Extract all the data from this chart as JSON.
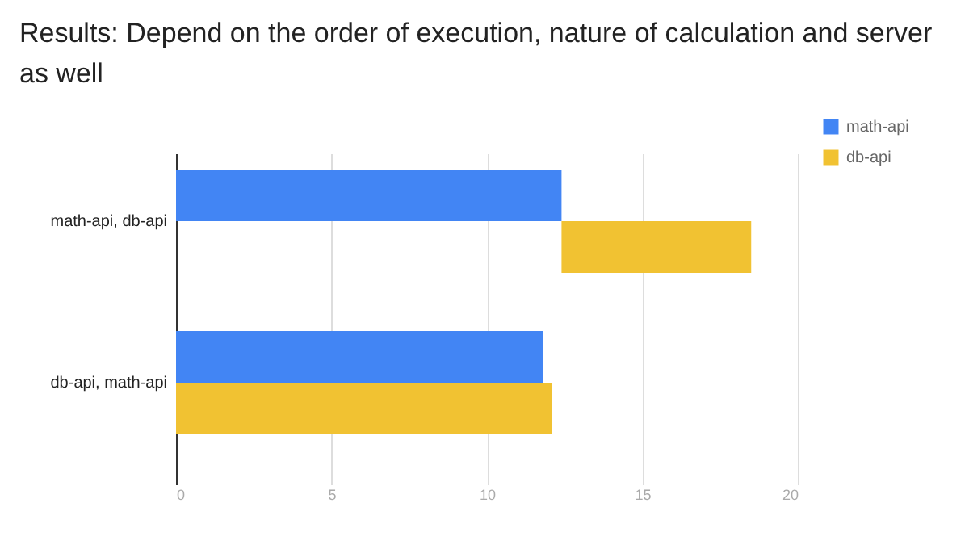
{
  "chart_data": {
    "type": "bar",
    "orientation": "horizontal",
    "title": "Results: Depend on the order of execution, nature of calculation and server as well",
    "categories": [
      "math-api, db-api",
      "db-api, math-api"
    ],
    "series": [
      {
        "name": "math-api",
        "color": "#4285f4",
        "values": [
          12.4,
          11.8
        ]
      },
      {
        "name": "db-api",
        "color": "#f1c232",
        "values": [
          6.1,
          12.1
        ],
        "base": [
          12.4,
          0
        ]
      }
    ],
    "xlim": [
      0,
      20
    ],
    "xticks": [
      0,
      5,
      10,
      15,
      20
    ],
    "grid": "x",
    "legend": "top right"
  }
}
